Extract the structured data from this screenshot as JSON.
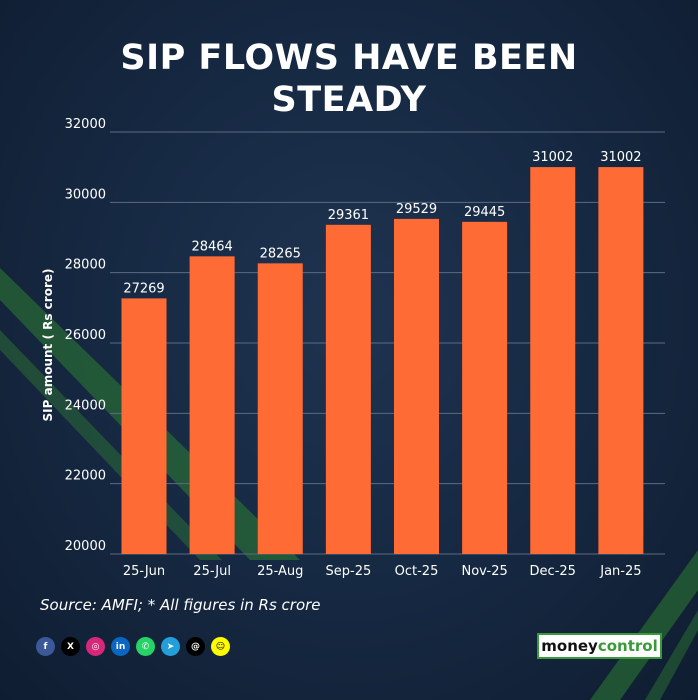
{
  "header": {
    "title_line1": "SIP FLOWS HAVE BEEN",
    "title_line2": "STEADY"
  },
  "chart_data": {
    "type": "bar",
    "categories": [
      "25-Jun",
      "25-Jul",
      "25-Aug",
      "Sep-25",
      "Oct-25",
      "Nov-25",
      "Dec-25",
      "Jan-25"
    ],
    "values": [
      27269,
      28464,
      28265,
      29361,
      29529,
      29445,
      31002,
      31002
    ],
    "ylabel": "SIP amount ( Rs crore)",
    "ylim": [
      20000,
      32000
    ],
    "yticks": [
      20000,
      22000,
      24000,
      26000,
      28000,
      30000,
      32000
    ],
    "grid": true,
    "bar_color": "#ff6b35"
  },
  "footer": {
    "source": "Source: AMFI; * All figures in Rs crore",
    "brand_part1": "money",
    "brand_part2": "control",
    "social_icons": [
      "facebook-icon",
      "x-icon",
      "instagram-icon",
      "linkedin-icon",
      "whatsapp-icon",
      "telegram-icon",
      "threads-icon",
      "snapchat-icon"
    ]
  },
  "colors": {
    "background": "#172a44",
    "bar": "#ff6b35",
    "text": "#ffffff",
    "brand_green": "#3a9a3a"
  }
}
